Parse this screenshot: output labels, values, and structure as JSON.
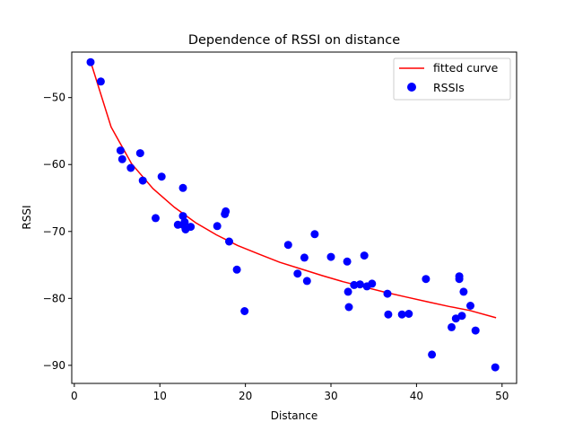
{
  "chart_data": {
    "type": "scatter",
    "title": "Dependence of RSSI on distance",
    "xlabel": "Distance",
    "ylabel": "RSSI",
    "xlim": [
      -0.3,
      51.7
    ],
    "ylim": [
      -92.7,
      -43.2
    ],
    "xticks": [
      0,
      10,
      20,
      30,
      40,
      50
    ],
    "yticks": [
      -90,
      -80,
      -70,
      -60,
      -50
    ],
    "grid": false,
    "legend_position": "top-right",
    "series": [
      {
        "name": "fitted curve",
        "kind": "line",
        "color": "#ff0000",
        "x": [
          2.0,
          4.3,
          6.7,
          9.2,
          11.7,
          14.2,
          16.6,
          19.1,
          21.6,
          24.0,
          26.5,
          29.0,
          31.4,
          33.9,
          36.4,
          38.8,
          41.3,
          43.8,
          46.2,
          49.3
        ],
        "y": [
          -45.0,
          -54.4,
          -59.9,
          -63.6,
          -66.4,
          -68.7,
          -70.5,
          -72.1,
          -73.4,
          -74.6,
          -75.6,
          -76.6,
          -77.5,
          -78.3,
          -79.1,
          -79.8,
          -80.5,
          -81.2,
          -81.8,
          -82.9
        ]
      },
      {
        "name": "RSSIs",
        "kind": "scatter",
        "color": "#0000ff",
        "x": [
          1.9,
          3.1,
          5.4,
          5.6,
          6.6,
          7.7,
          8.0,
          9.5,
          10.2,
          12.1,
          12.7,
          12.7,
          12.9,
          12.7,
          13.0,
          13.6,
          16.7,
          17.6,
          17.7,
          18.1,
          19.0,
          19.9,
          25.0,
          26.1,
          26.9,
          27.2,
          28.1,
          30.0,
          31.9,
          32.0,
          32.1,
          32.7,
          33.4,
          33.9,
          34.2,
          34.8,
          36.6,
          36.7,
          38.3,
          39.1,
          41.1,
          41.8,
          44.1,
          44.6,
          45.0,
          45.0,
          45.3,
          45.5,
          46.3,
          46.9,
          49.2
        ],
        "y": [
          -44.7,
          -47.6,
          -57.9,
          -59.2,
          -60.5,
          -58.3,
          -62.4,
          -68.0,
          -61.8,
          -69.0,
          -63.5,
          -67.7,
          -68.6,
          -69.0,
          -69.7,
          -69.3,
          -69.2,
          -67.4,
          -67.0,
          -71.5,
          -75.7,
          -81.9,
          -72.0,
          -76.3,
          -73.9,
          -77.4,
          -70.4,
          -73.8,
          -74.5,
          -79.0,
          -81.3,
          -78.0,
          -77.9,
          -73.6,
          -78.2,
          -77.8,
          -79.3,
          -82.4,
          -82.4,
          -82.3,
          -77.1,
          -88.4,
          -84.3,
          -83.0,
          -76.7,
          -77.1,
          -82.6,
          -79.0,
          -81.1,
          -84.8,
          -90.3
        ]
      }
    ]
  }
}
